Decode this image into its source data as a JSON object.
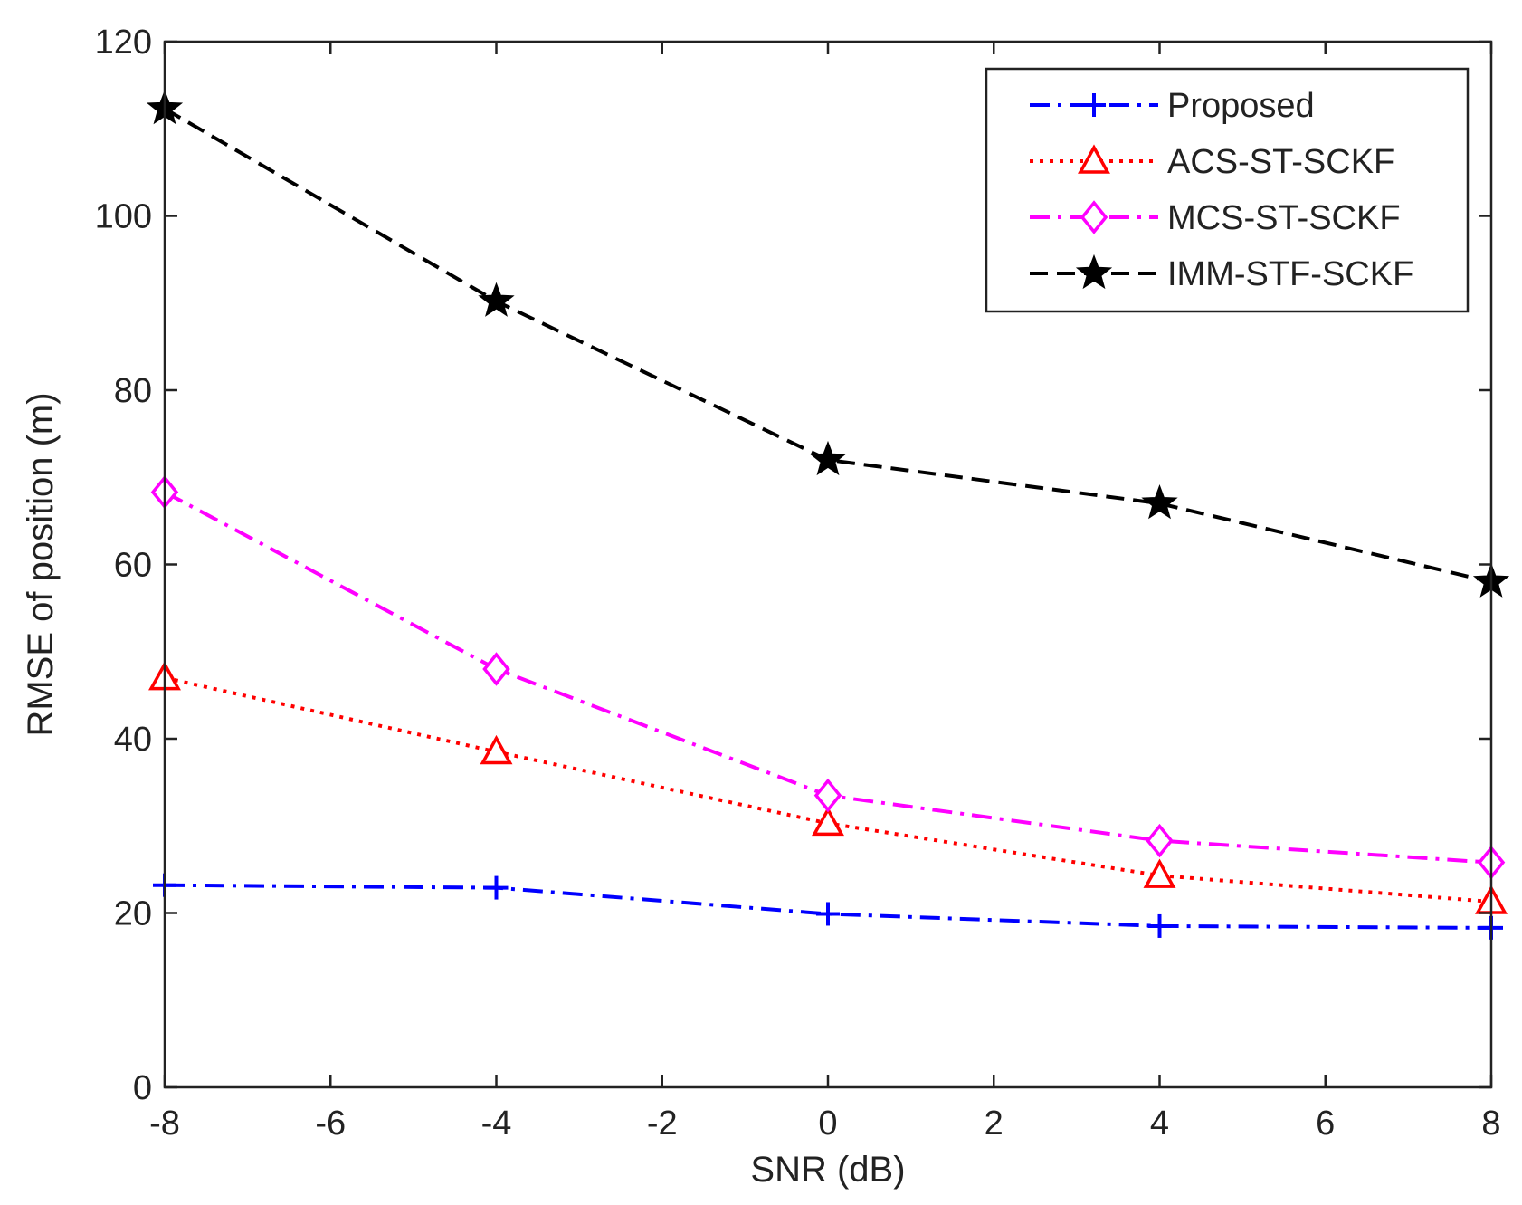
{
  "chart_data": {
    "type": "line",
    "title": "",
    "xlabel": "SNR (dB)",
    "ylabel": "RMSE of position (m)",
    "xlim": [
      -8,
      8
    ],
    "ylim": [
      0,
      120
    ],
    "xticks": [
      -8,
      -6,
      -4,
      -2,
      0,
      2,
      4,
      6,
      8
    ],
    "yticks": [
      0,
      20,
      40,
      60,
      80,
      100,
      120
    ],
    "xtick_labels": [
      "-8",
      "-6",
      "-4",
      "-2",
      "0",
      "2",
      "4",
      "6",
      "8"
    ],
    "ytick_labels": [
      "0",
      "20",
      "40",
      "60",
      "80",
      "100",
      "120"
    ],
    "grid": false,
    "legend_position": "top-right",
    "x": [
      -8,
      -4,
      0,
      4,
      8
    ],
    "series": [
      {
        "name": "Proposed",
        "values": [
          23.2,
          22.9,
          19.9,
          18.5,
          18.3
        ],
        "color": "#0000ff",
        "line_style": "dash-dot",
        "marker": "plus"
      },
      {
        "name": "ACS-ST-SCKF",
        "values": [
          47.0,
          38.5,
          30.3,
          24.3,
          21.3
        ],
        "color": "#ff0000",
        "line_style": "dotted",
        "marker": "triangle"
      },
      {
        "name": "MCS-ST-SCKF",
        "values": [
          68.3,
          48.0,
          33.5,
          28.3,
          25.8
        ],
        "color": "#ff00ff",
        "line_style": "dash-dot",
        "marker": "diamond"
      },
      {
        "name": "IMM-STF-SCKF",
        "values": [
          112.3,
          90.2,
          72.0,
          67.0,
          58.0
        ],
        "color": "#000000",
        "line_style": "dashed",
        "marker": "star"
      }
    ]
  }
}
